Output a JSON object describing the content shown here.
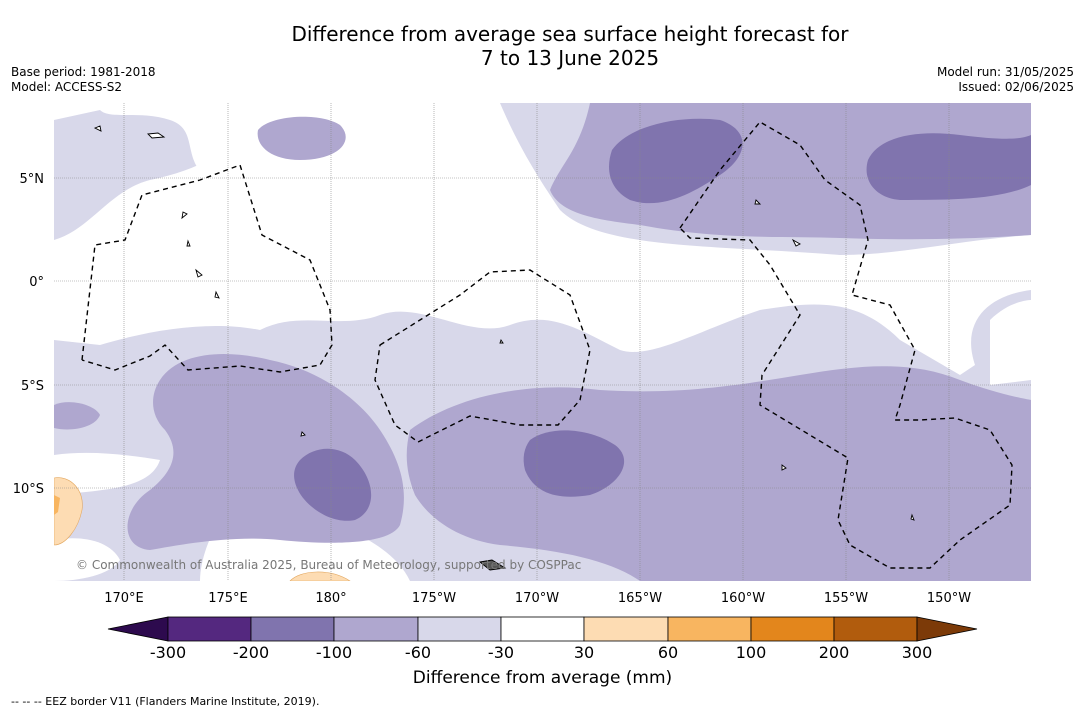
{
  "title": {
    "line1": "Difference from average sea surface height forecast for",
    "line2": "7 to 13 June 2025"
  },
  "meta": {
    "base_period": "Base period: 1981-2018",
    "model": "Model: ACCESS-S2",
    "model_run": "Model run: 31/05/2025",
    "issued": "Issued: 02/06/2025"
  },
  "map": {
    "lat_labels": [
      "5°N",
      "0°",
      "5°S",
      "10°S"
    ],
    "lon_labels": [
      "170°E",
      "175°E",
      "180°",
      "175°W",
      "170°W",
      "165°W",
      "160°W",
      "155°W",
      "150°W"
    ],
    "copyright": "© Commonwealth of Australia 2025, Bureau of Meteorology, supported by COSPPac"
  },
  "colorbar": {
    "title": "Difference from average (mm)",
    "ticks": [
      "-300",
      "-200",
      "-100",
      "-60",
      "-30",
      "30",
      "60",
      "100",
      "200",
      "300"
    ],
    "colors": {
      "below_min": "#2d0a4e",
      "m300_m200": "#54287f",
      "m200_m100": "#8074ae",
      "m100_m60": "#afa7cf",
      "m60_m30": "#d8d8ea",
      "m30_30": "#ffffff",
      "30_60": "#fddcb3",
      "60_100": "#f8b560",
      "100_200": "#e3861c",
      "200_300": "#b15c0d",
      "above_max": "#7c3a08"
    }
  },
  "footnote": "--  --  -- EEZ border V11 (Flanders Marine Institute, 2019)."
}
